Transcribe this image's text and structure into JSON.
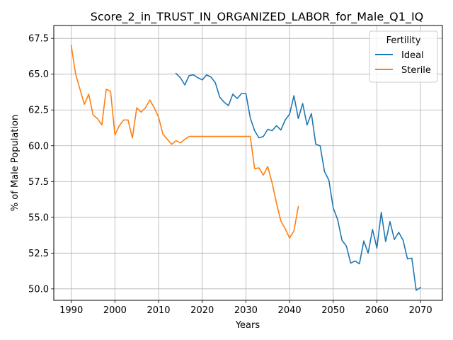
{
  "chart_data": {
    "type": "line",
    "title": "Score_2_in_TRUST_IN_ORGANIZED_LABOR_for_Male_Q1_IQ",
    "xlabel": "Years",
    "ylabel": "% of Male Population",
    "xlim": [
      1986,
      2075
    ],
    "ylim": [
      49.2,
      68.4
    ],
    "xticks": [
      1990,
      2000,
      2010,
      2020,
      2030,
      2040,
      2050,
      2060,
      2070
    ],
    "yticks": [
      50.0,
      52.5,
      55.0,
      57.5,
      60.0,
      62.5,
      65.0,
      67.5
    ],
    "ytick_labels": [
      "50.0",
      "52.5",
      "55.0",
      "57.5",
      "60.0",
      "62.5",
      "65.0",
      "67.5"
    ],
    "grid": true,
    "legend": {
      "title": "Fertility",
      "placement": "top-right"
    },
    "series": [
      {
        "name": "Ideal",
        "color": "#1f77b4",
        "x": [
          2014,
          2015,
          2016,
          2017,
          2018,
          2019,
          2020,
          2021,
          2022,
          2023,
          2024,
          2025,
          2026,
          2027,
          2028,
          2029,
          2030,
          2031,
          2032,
          2033,
          2034,
          2035,
          2036,
          2037,
          2038,
          2039,
          2040,
          2041,
          2042,
          2043,
          2044,
          2045,
          2046,
          2047,
          2048,
          2049,
          2050,
          2051,
          2052,
          2053,
          2054,
          2055,
          2056,
          2057,
          2058,
          2059,
          2060,
          2061,
          2062,
          2063,
          2064,
          2065,
          2066,
          2067,
          2068,
          2069,
          2070
        ],
        "y": [
          65.05,
          64.75,
          64.25,
          64.9,
          64.95,
          64.75,
          64.6,
          64.95,
          64.8,
          64.4,
          63.4,
          63.05,
          62.8,
          63.6,
          63.3,
          63.65,
          63.65,
          61.95,
          61.05,
          60.55,
          60.65,
          61.15,
          61.05,
          61.4,
          61.1,
          61.8,
          62.2,
          63.5,
          61.9,
          62.95,
          61.45,
          62.25,
          60.1,
          60.0,
          58.2,
          57.6,
          55.65,
          54.85,
          53.4,
          53.0,
          51.8,
          51.95,
          51.75,
          53.35,
          52.5,
          54.15,
          52.85,
          55.35,
          53.3,
          54.7,
          53.45,
          53.95,
          53.4,
          52.1,
          52.15,
          49.9,
          50.1
        ]
      },
      {
        "name": "Sterile",
        "color": "#ff7f0e",
        "x": [
          1990,
          1991,
          1992,
          1993,
          1994,
          1995,
          1996,
          1997,
          1998,
          1999,
          2000,
          2001,
          2002,
          2003,
          2004,
          2005,
          2006,
          2007,
          2008,
          2009,
          2010,
          2011,
          2012,
          2013,
          2014,
          2015,
          2016,
          2017,
          2018,
          2019,
          2020,
          2021,
          2022,
          2023,
          2024,
          2025,
          2026,
          2027,
          2028,
          2029,
          2030,
          2031,
          2032,
          2033,
          2034,
          2035,
          2036,
          2037,
          2038,
          2039,
          2040,
          2041,
          2042
        ],
        "y": [
          67.0,
          65.0,
          63.95,
          62.9,
          63.6,
          62.15,
          61.9,
          61.45,
          63.95,
          63.8,
          60.75,
          61.4,
          61.8,
          61.8,
          60.55,
          62.65,
          62.35,
          62.65,
          63.2,
          62.65,
          62.0,
          60.8,
          60.45,
          60.1,
          60.35,
          60.2,
          60.45,
          60.65,
          60.65,
          60.65,
          60.65,
          60.65,
          60.65,
          60.65,
          60.65,
          60.65,
          60.65,
          60.65,
          60.65,
          60.65,
          60.65,
          60.65,
          58.4,
          58.45,
          57.95,
          58.55,
          57.4,
          56.0,
          54.75,
          54.2,
          53.55,
          54.05,
          55.75
        ]
      }
    ]
  }
}
